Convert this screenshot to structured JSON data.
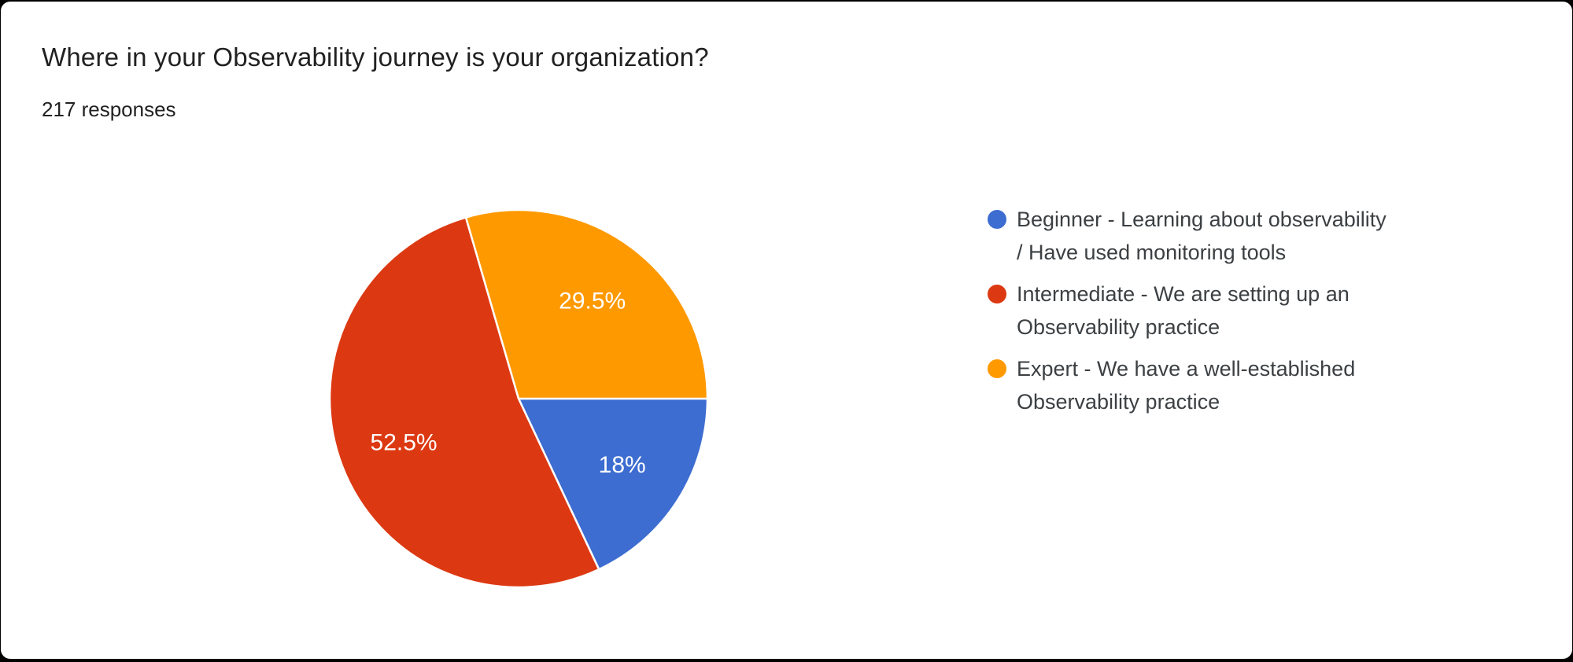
{
  "chart": {
    "title": "Where in your Observability journey is your organization?",
    "subtitle": "217 responses"
  },
  "chart_data": {
    "type": "pie",
    "title": "Where in your Observability journey is your organization?",
    "subtitle": "217 responses",
    "total_responses": 217,
    "legend_position": "right",
    "start_angle_deg": 0,
    "direction": "clockwise",
    "slice_label_color": "#ffffff",
    "slice_border_color": "#ffffff",
    "slices": [
      {
        "key": "beginner",
        "label": "Beginner - Learning about observability / Have used monitoring tools",
        "value_pct": 18,
        "display": "18%",
        "color": "#3d6dd1"
      },
      {
        "key": "intermediate",
        "label": "Intermediate - We are setting up an Observability practice",
        "value_pct": 52.5,
        "display": "52.5%",
        "color": "#dc3912"
      },
      {
        "key": "expert",
        "label": "Expert - We have a well-established Observability practice",
        "value_pct": 29.5,
        "display": "29.5%",
        "color": "#ff9900"
      }
    ]
  }
}
